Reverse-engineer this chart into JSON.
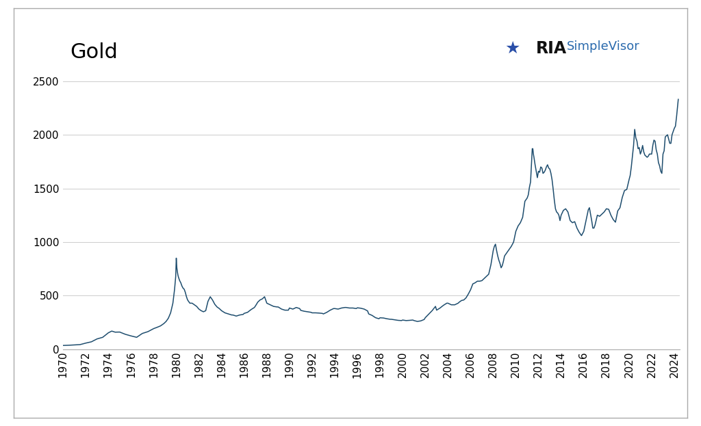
{
  "title": "Gold",
  "line_color": "#1e4d6e",
  "background_color": "#ffffff",
  "plot_bg_color": "#ffffff",
  "grid_color": "#cccccc",
  "border_color": "#999999",
  "ylim": [
    0,
    2700
  ],
  "yticks": [
    0,
    500,
    1000,
    1500,
    2000,
    2500
  ],
  "xlim": [
    1970,
    2024.5
  ],
  "title_fontsize": 22,
  "tick_fontsize": 11,
  "line_width": 1.1,
  "xtick_labels": [
    "1970",
    "1972",
    "1974",
    "1976",
    "1978",
    "1980",
    "1982",
    "1984",
    "1986",
    "1988",
    "1990",
    "1992",
    "1994",
    "1996",
    "1998",
    "2000",
    "2002",
    "2004",
    "2006",
    "2008",
    "2010",
    "2012",
    "2014",
    "2016",
    "2018",
    "2020",
    "2022",
    "2024"
  ],
  "gold_data_x": [
    1970.0,
    1970.5,
    1971.0,
    1971.5,
    1972.0,
    1972.5,
    1973.0,
    1973.5,
    1974.0,
    1974.3,
    1974.6,
    1975.0,
    1975.5,
    1976.0,
    1976.5,
    1977.0,
    1977.5,
    1978.0,
    1978.3,
    1978.6,
    1978.9,
    1979.1,
    1979.3,
    1979.5,
    1979.7,
    1979.85,
    1979.95,
    1980.0,
    1980.05,
    1980.1,
    1980.15,
    1980.2,
    1980.3,
    1980.4,
    1980.5,
    1980.6,
    1980.7,
    1980.8,
    1980.9,
    1981.0,
    1981.2,
    1981.4,
    1981.6,
    1981.8,
    1982.0,
    1982.2,
    1982.4,
    1982.6,
    1982.8,
    1983.0,
    1983.2,
    1983.4,
    1983.6,
    1983.8,
    1984.0,
    1984.3,
    1984.6,
    1984.9,
    1985.0,
    1985.3,
    1985.6,
    1985.9,
    1986.0,
    1986.3,
    1986.6,
    1986.9,
    1987.0,
    1987.2,
    1987.4,
    1987.6,
    1987.8,
    1988.0,
    1988.3,
    1988.6,
    1988.9,
    1989.0,
    1989.3,
    1989.6,
    1989.9,
    1990.0,
    1990.3,
    1990.6,
    1990.9,
    1991.0,
    1991.3,
    1991.6,
    1991.9,
    1992.0,
    1992.3,
    1992.6,
    1992.9,
    1993.0,
    1993.3,
    1993.6,
    1993.9,
    1994.0,
    1994.3,
    1994.6,
    1994.9,
    1995.0,
    1995.3,
    1995.6,
    1995.9,
    1996.0,
    1996.3,
    1996.6,
    1996.9,
    1997.0,
    1997.3,
    1997.6,
    1997.9,
    1998.0,
    1998.3,
    1998.6,
    1998.9,
    1999.0,
    1999.3,
    1999.6,
    1999.9,
    2000.0,
    2000.3,
    2000.6,
    2000.9,
    2001.0,
    2001.3,
    2001.6,
    2001.9,
    2002.0,
    2002.3,
    2002.6,
    2002.9,
    2003.0,
    2003.3,
    2003.6,
    2003.9,
    2004.0,
    2004.3,
    2004.6,
    2004.9,
    2005.0,
    2005.2,
    2005.4,
    2005.6,
    2005.8,
    2006.0,
    2006.2,
    2006.4,
    2006.6,
    2006.8,
    2007.0,
    2007.2,
    2007.4,
    2007.6,
    2007.8,
    2008.0,
    2008.1,
    2008.2,
    2008.3,
    2008.4,
    2008.5,
    2008.6,
    2008.7,
    2008.8,
    2008.9,
    2009.0,
    2009.2,
    2009.4,
    2009.6,
    2009.8,
    2010.0,
    2010.2,
    2010.4,
    2010.6,
    2010.8,
    2011.0,
    2011.1,
    2011.2,
    2011.3,
    2011.4,
    2011.45,
    2011.5,
    2011.55,
    2011.6,
    2011.7,
    2011.8,
    2011.9,
    2012.0,
    2012.1,
    2012.2,
    2012.3,
    2012.4,
    2012.5,
    2012.6,
    2012.7,
    2012.8,
    2012.9,
    2013.0,
    2013.1,
    2013.2,
    2013.3,
    2013.4,
    2013.5,
    2013.6,
    2013.7,
    2013.8,
    2013.9,
    2014.0,
    2014.2,
    2014.4,
    2014.6,
    2014.8,
    2015.0,
    2015.2,
    2015.4,
    2015.6,
    2015.8,
    2016.0,
    2016.1,
    2016.2,
    2016.3,
    2016.4,
    2016.5,
    2016.6,
    2016.7,
    2016.8,
    2016.9,
    2017.0,
    2017.2,
    2017.4,
    2017.6,
    2017.8,
    2018.0,
    2018.2,
    2018.4,
    2018.6,
    2018.8,
    2019.0,
    2019.2,
    2019.4,
    2019.6,
    2019.8,
    2020.0,
    2020.1,
    2020.2,
    2020.3,
    2020.4,
    2020.5,
    2020.6,
    2020.7,
    2020.8,
    2020.9,
    2021.0,
    2021.1,
    2021.2,
    2021.3,
    2021.4,
    2021.5,
    2021.6,
    2021.7,
    2021.8,
    2021.9,
    2022.0,
    2022.1,
    2022.2,
    2022.3,
    2022.4,
    2022.5,
    2022.6,
    2022.7,
    2022.8,
    2022.9,
    2023.0,
    2023.1,
    2023.2,
    2023.3,
    2023.4,
    2023.5,
    2023.6,
    2023.7,
    2023.8,
    2023.9,
    2024.0,
    2024.1,
    2024.2,
    2024.3,
    2024.35
  ],
  "gold_data_y": [
    36,
    38,
    41,
    44,
    58,
    70,
    97,
    112,
    154,
    170,
    160,
    161,
    140,
    125,
    112,
    148,
    165,
    193,
    205,
    218,
    240,
    260,
    290,
    340,
    430,
    560,
    680,
    850,
    760,
    720,
    690,
    670,
    640,
    620,
    590,
    570,
    560,
    530,
    490,
    460,
    430,
    430,
    415,
    400,
    375,
    360,
    350,
    360,
    447,
    490,
    460,
    420,
    395,
    380,
    360,
    340,
    330,
    320,
    320,
    310,
    320,
    325,
    335,
    345,
    370,
    390,
    405,
    440,
    460,
    470,
    490,
    430,
    415,
    400,
    395,
    395,
    375,
    365,
    365,
    385,
    375,
    390,
    380,
    363,
    355,
    350,
    345,
    340,
    340,
    338,
    335,
    330,
    345,
    365,
    380,
    380,
    375,
    385,
    390,
    390,
    385,
    385,
    380,
    387,
    383,
    375,
    358,
    330,
    316,
    295,
    285,
    294,
    292,
    285,
    280,
    280,
    275,
    270,
    268,
    273,
    268,
    270,
    273,
    268,
    260,
    265,
    278,
    295,
    328,
    360,
    400,
    365,
    385,
    410,
    430,
    430,
    415,
    415,
    430,
    440,
    455,
    460,
    480,
    515,
    555,
    610,
    620,
    635,
    635,
    640,
    660,
    680,
    700,
    790,
    920,
    960,
    980,
    920,
    870,
    830,
    800,
    760,
    780,
    820,
    870,
    900,
    930,
    960,
    1000,
    1100,
    1150,
    1180,
    1230,
    1380,
    1410,
    1440,
    1510,
    1560,
    1760,
    1870,
    1870,
    1820,
    1790,
    1720,
    1660,
    1600,
    1660,
    1650,
    1700,
    1690,
    1640,
    1650,
    1670,
    1700,
    1720,
    1690,
    1680,
    1640,
    1580,
    1490,
    1390,
    1310,
    1280,
    1270,
    1250,
    1200,
    1250,
    1295,
    1310,
    1280,
    1200,
    1180,
    1190,
    1130,
    1090,
    1060,
    1100,
    1150,
    1200,
    1250,
    1300,
    1320,
    1260,
    1200,
    1130,
    1130,
    1160,
    1250,
    1240,
    1260,
    1280,
    1310,
    1305,
    1250,
    1210,
    1185,
    1290,
    1320,
    1415,
    1480,
    1490,
    1580,
    1620,
    1700,
    1800,
    1900,
    2050,
    1970,
    1940,
    1870,
    1880,
    1820,
    1850,
    1900,
    1840,
    1810,
    1800,
    1790,
    1800,
    1820,
    1820,
    1820,
    1900,
    1950,
    1940,
    1860,
    1820,
    1740,
    1710,
    1660,
    1640,
    1820,
    1850,
    1980,
    1990,
    2000,
    1960,
    1920,
    1920,
    2000,
    2030,
    2060,
    2080,
    2170,
    2280,
    2330
  ],
  "ria_text": "RIA",
  "simplevisor_text": "SimpleVisor"
}
